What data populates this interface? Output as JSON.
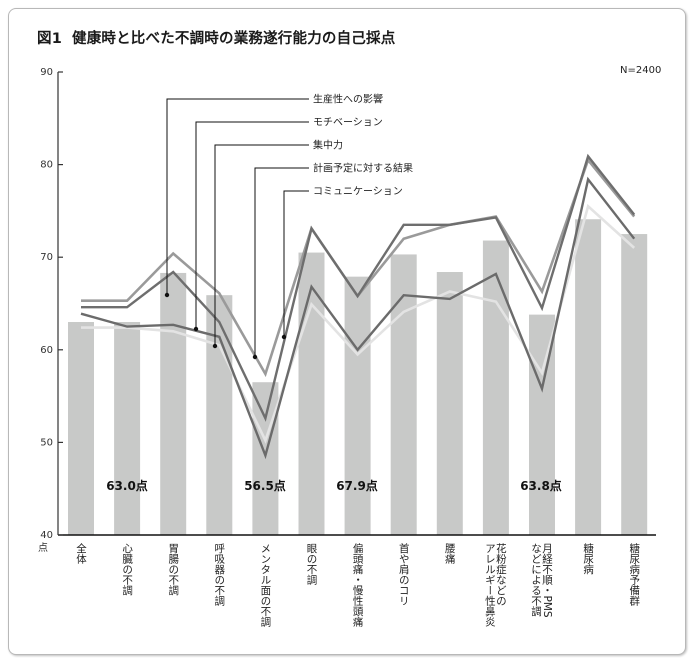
{
  "title": {
    "figure": "図1",
    "text": "健康時と比べた不調時の業務遂行能力の自己採点"
  },
  "n_label": "N=2400",
  "y_axis": {
    "ticks": [
      "90",
      "80",
      "70",
      "60",
      "50",
      "40"
    ],
    "unit": "点"
  },
  "legend": [
    {
      "label": "生産性への影響",
      "target": "bars"
    },
    {
      "label": "モチベーション",
      "target": "line-motivation"
    },
    {
      "label": "集中力",
      "target": "line-concentration"
    },
    {
      "label": "計画予定に対する結果",
      "target": "line-planning"
    },
    {
      "label": "コミュニケーション",
      "target": "line-communication"
    }
  ],
  "annotations": [
    {
      "label": "63.0点",
      "category": "心臓の不調"
    },
    {
      "label": "56.5点",
      "category": "メンタル面の不調"
    },
    {
      "label": "67.9点",
      "category": "偏頭痛・慢性頭痛"
    },
    {
      "label": "63.8点",
      "category": "月経不順・PMSなどによる不調"
    }
  ],
  "categories_display": [
    "全体",
    "心臓の不調",
    "胃腸の不調",
    "呼吸器の不調",
    "メンタル面の不調",
    "眼の不調",
    "偏頭痛・慢性頭痛",
    "首や肩のコリ",
    "腰痛",
    "花粉症などの\nアレルギー性鼻炎",
    "月経不順・PMS\nなどによる不調",
    "糖尿病",
    "糖尿病予備群"
  ],
  "colors": {
    "bar": "#c8c9c8",
    "motivation": "#6b6b6b",
    "concentration": "#e3e3e3",
    "planning": "#9a9a9a",
    "communication": "#6e6e6e",
    "axis": "#333333",
    "leader": "#111111"
  },
  "chart_data": {
    "type": "bar",
    "title": "図1 健康時と比べた不調時の業務遂行能力の自己採点",
    "xlabel": "",
    "ylabel": "点",
    "ylim": [
      40,
      90
    ],
    "yticks": [
      40,
      50,
      60,
      70,
      80,
      90
    ],
    "grid": false,
    "note": "N=2400",
    "categories": [
      "全体",
      "心臓の不調",
      "胃腸の不調",
      "呼吸器の不調",
      "メンタル面の不調",
      "眼の不調",
      "偏頭痛・慢性頭痛",
      "首や肩のコリ",
      "腰痛",
      "花粉症などのアレルギー性鼻炎",
      "月経不順・PMSなどによる不調",
      "糖尿病",
      "糖尿病予備群"
    ],
    "series": [
      {
        "name": "生産性への影響",
        "type": "bar",
        "values": [
          63.0,
          63.0,
          68.3,
          65.9,
          56.5,
          70.5,
          67.9,
          70.3,
          68.4,
          71.8,
          63.8,
          74.1,
          72.5
        ]
      },
      {
        "name": "モチベーション",
        "type": "line",
        "values": [
          63.9,
          62.5,
          62.7,
          61.4,
          48.6,
          66.8,
          60.0,
          65.9,
          65.5,
          68.2,
          55.8,
          78.4,
          72.0
        ]
      },
      {
        "name": "集中力",
        "type": "line",
        "values": [
          62.4,
          62.4,
          62.0,
          60.5,
          50.2,
          64.9,
          59.5,
          64.1,
          66.3,
          65.2,
          57.5,
          75.5,
          71.0
        ]
      },
      {
        "name": "計画予定に対する結果",
        "type": "line",
        "values": [
          65.3,
          65.3,
          70.4,
          66.1,
          57.4,
          73.1,
          65.8,
          72.0,
          73.5,
          74.4,
          66.3,
          80.5,
          74.4
        ]
      },
      {
        "name": "コミュニケーション",
        "type": "line",
        "values": [
          64.6,
          64.6,
          68.4,
          63.0,
          52.6,
          73.1,
          65.8,
          73.5,
          73.5,
          74.3,
          64.5,
          80.9,
          74.6
        ]
      }
    ],
    "annotations": [
      {
        "text": "63.0点"
      },
      {
        "text": "56.5点"
      },
      {
        "text": "67.9点"
      },
      {
        "text": "63.8点"
      }
    ],
    "legend_position": "top-center (leader lines)"
  }
}
